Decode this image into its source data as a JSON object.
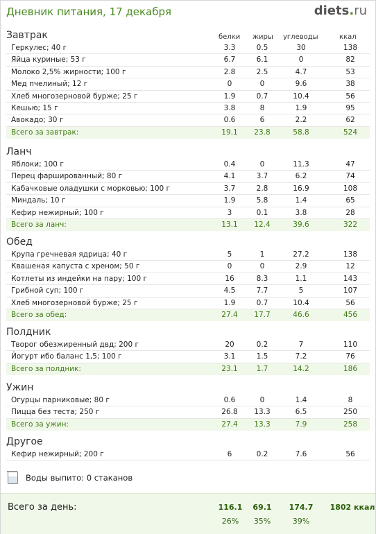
{
  "header": {
    "title": "Дневник питания, 17 декабря",
    "brand_name": "diets",
    "brand_dot": ".",
    "brand_tld": "ru"
  },
  "columns": [
    "белки",
    "жиры",
    "углеводы",
    "ккал"
  ],
  "sections": [
    {
      "title": "Завтрак",
      "rows": [
        {
          "name": "Геркулес; 40 г",
          "p": "3.3",
          "f": "0.5",
          "c": "30",
          "k": "138"
        },
        {
          "name": "Яйца куриные; 53 г",
          "p": "6.7",
          "f": "6.1",
          "c": "0",
          "k": "82"
        },
        {
          "name": "Молоко 2,5% жирности; 100 г",
          "p": "2.8",
          "f": "2.5",
          "c": "4.7",
          "k": "53"
        },
        {
          "name": "Мед пчелиный; 12 г",
          "p": "0",
          "f": "0",
          "c": "9.6",
          "k": "38"
        },
        {
          "name": "Хлеб многозерновой бурже; 25 г",
          "p": "1.9",
          "f": "0.7",
          "c": "10.4",
          "k": "56"
        },
        {
          "name": "Кешью; 15 г",
          "p": "3.8",
          "f": "8",
          "c": "1.9",
          "k": "95"
        },
        {
          "name": "Авокадо; 30 г",
          "p": "0.6",
          "f": "6",
          "c": "2.2",
          "k": "62"
        }
      ],
      "total": {
        "name": "Всего за завтрак:",
        "p": "19.1",
        "f": "23.8",
        "c": "58.8",
        "k": "524"
      }
    },
    {
      "title": "Ланч",
      "rows": [
        {
          "name": "Яблоки; 100 г",
          "p": "0.4",
          "f": "0",
          "c": "11.3",
          "k": "47"
        },
        {
          "name": "Перец фаршированный; 80 г",
          "p": "4.1",
          "f": "3.7",
          "c": "6.2",
          "k": "74"
        },
        {
          "name": "Кабачковые оладушки с морковью; 100 г",
          "p": "3.7",
          "f": "2.8",
          "c": "16.9",
          "k": "108"
        },
        {
          "name": "Миндаль; 10 г",
          "p": "1.9",
          "f": "5.8",
          "c": "1.4",
          "k": "65"
        },
        {
          "name": "Кефир нежирный; 100 г",
          "p": "3",
          "f": "0.1",
          "c": "3.8",
          "k": "28"
        }
      ],
      "total": {
        "name": "Всего за ланч:",
        "p": "13.1",
        "f": "12.4",
        "c": "39.6",
        "k": "322"
      }
    },
    {
      "title": "Обед",
      "rows": [
        {
          "name": "Крупа гречневая ядрица; 40 г",
          "p": "5",
          "f": "1",
          "c": "27.2",
          "k": "138"
        },
        {
          "name": "Квашеная капуста с хреном; 50 г",
          "p": "0",
          "f": "0",
          "c": "2.9",
          "k": "12"
        },
        {
          "name": "Котлеты из индейки на пару; 100 г",
          "p": "16",
          "f": "8.3",
          "c": "1.1",
          "k": "143"
        },
        {
          "name": "Грибной суп; 100 г",
          "p": "4.5",
          "f": "7.7",
          "c": "5",
          "k": "107"
        },
        {
          "name": "Хлеб многозерновой бурже; 25 г",
          "p": "1.9",
          "f": "0.7",
          "c": "10.4",
          "k": "56"
        }
      ],
      "total": {
        "name": "Всего за обед:",
        "p": "27.4",
        "f": "17.7",
        "c": "46.6",
        "k": "456"
      }
    },
    {
      "title": "Полдник",
      "rows": [
        {
          "name": "Творог обезжиренный двд; 200 г",
          "p": "20",
          "f": "0.2",
          "c": "7",
          "k": "110"
        },
        {
          "name": "Йогурт ибо баланс 1,5; 100 г",
          "p": "3.1",
          "f": "1.5",
          "c": "7.2",
          "k": "76"
        }
      ],
      "total": {
        "name": "Всего за полдник:",
        "p": "23.1",
        "f": "1.7",
        "c": "14.2",
        "k": "186"
      }
    },
    {
      "title": "Ужин",
      "rows": [
        {
          "name": "Огурцы парниковые; 80 г",
          "p": "0.6",
          "f": "0",
          "c": "1.4",
          "k": "8"
        },
        {
          "name": "Пицца без теста; 250 г",
          "p": "26.8",
          "f": "13.3",
          "c": "6.5",
          "k": "250"
        }
      ],
      "total": {
        "name": "Всего за ужин:",
        "p": "27.4",
        "f": "13.3",
        "c": "7.9",
        "k": "258"
      }
    },
    {
      "title": "Другое",
      "rows": [
        {
          "name": "Кефир нежирный; 200 г",
          "p": "6",
          "f": "0.2",
          "c": "7.6",
          "k": "56"
        }
      ],
      "total": null
    }
  ],
  "water": {
    "text": "Воды выпито: 0 стаканов",
    "icon": "water-glass-icon"
  },
  "day_total": {
    "label": "Всего за день:",
    "p": "116.1",
    "f": "69.1",
    "c": "174.7",
    "k": "1802 ккал",
    "p_pct": "26%",
    "f_pct": "35%",
    "c_pct": "39%"
  },
  "colors": {
    "accent": "#4a8a1f",
    "total_bg": "#f0f8e9",
    "total_text": "#3f7a15"
  }
}
